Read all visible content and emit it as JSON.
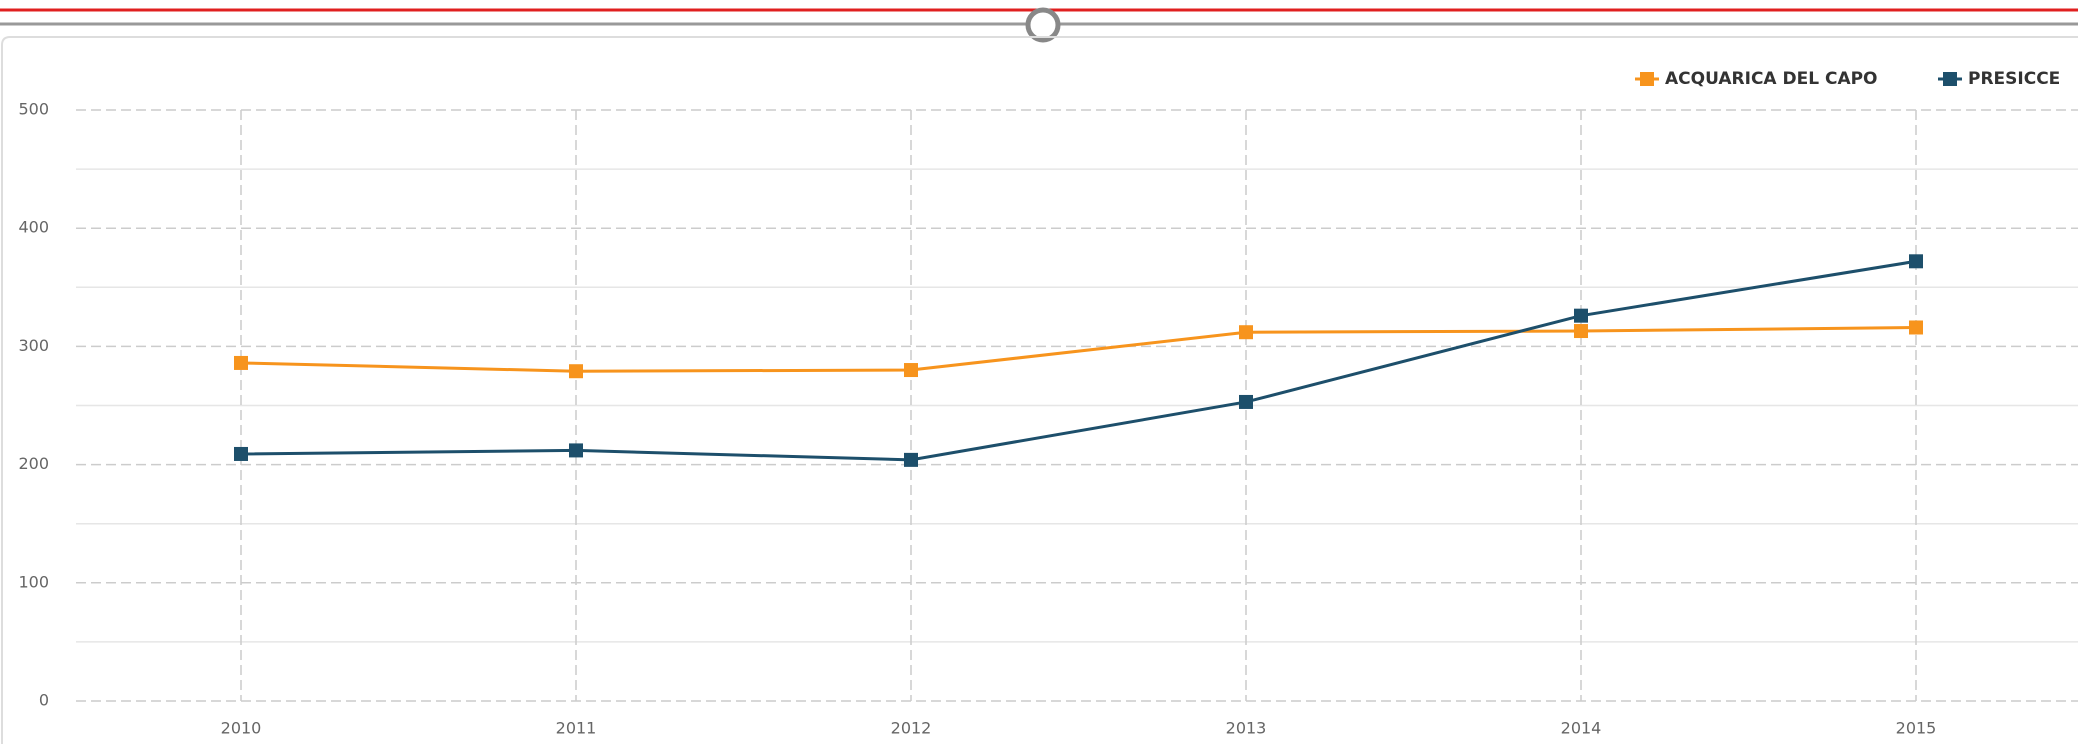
{
  "chart_data": {
    "type": "line",
    "categories": [
      "2010",
      "2011",
      "2012",
      "2013",
      "2014",
      "2015"
    ],
    "series": [
      {
        "name": "ACQUARICA DEL CAPO",
        "color": "#f7941d",
        "values": [
          286,
          279,
          280,
          312,
          313,
          316
        ]
      },
      {
        "name": "PRESICCE",
        "color": "#1d4f6b",
        "values": [
          209,
          212,
          204,
          253,
          326,
          372
        ]
      }
    ],
    "ylim": [
      0,
      500
    ],
    "yticks": [
      0,
      100,
      200,
      300,
      400,
      500
    ],
    "yticks_minor": [
      50,
      150,
      250,
      350,
      450
    ],
    "grid": true,
    "legend": "top-right"
  }
}
